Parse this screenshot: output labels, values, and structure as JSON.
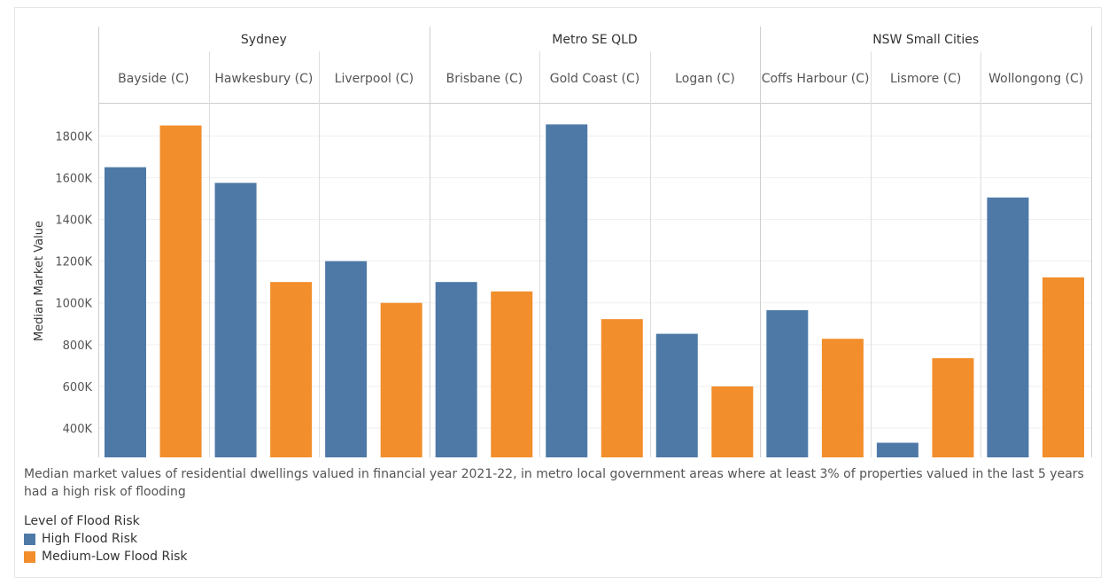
{
  "chart_data": {
    "type": "bar",
    "ylabel": "Median Market Value",
    "y_ticks": [
      "400K",
      "600K",
      "800K",
      "1000K",
      "1200K",
      "1400K",
      "1600K",
      "1800K"
    ],
    "y_tick_values": [
      400000,
      600000,
      800000,
      1000000,
      1200000,
      1400000,
      1600000,
      1800000
    ],
    "ylim": [
      260000,
      1950000
    ],
    "grid": true,
    "regions": [
      {
        "name": "Sydney",
        "categories": [
          "Bayside (C)",
          "Hawkesbury (C)",
          "Liverpool (C)"
        ]
      },
      {
        "name": "Metro SE QLD",
        "categories": [
          "Brisbane (C)",
          "Gold Coast (C)",
          "Logan (C)"
        ]
      },
      {
        "name": "NSW Small Cities",
        "categories": [
          "Coffs Harbour (C)",
          "Lismore (C)",
          "Wollongong (C)"
        ]
      }
    ],
    "categories": [
      "Bayside (C)",
      "Hawkesbury (C)",
      "Liverpool (C)",
      "Brisbane (C)",
      "Gold Coast (C)",
      "Logan (C)",
      "Coffs Harbour (C)",
      "Lismore (C)",
      "Wollongong (C)"
    ],
    "series": [
      {
        "name": "High Flood Risk",
        "color": "#4e79a7",
        "values": [
          1650000,
          1575000,
          1200000,
          1100000,
          1855000,
          852000,
          965000,
          330000,
          1505000
        ]
      },
      {
        "name": "Medium-Low Flood Risk",
        "color": "#f28e2b",
        "values": [
          1850000,
          1100000,
          1000000,
          1055000,
          922000,
          600000,
          828000,
          735000,
          1122000
        ]
      }
    ],
    "legend_position": "bottom-left"
  },
  "caption": "Median market values of residential dwellings valued in financial year 2021-22, in metro local government areas where at least 3% of properties valued in the last 5 years had a high risk of flooding",
  "legend": {
    "title": "Level of Flood Risk",
    "items": [
      {
        "label": "High Flood Risk",
        "color": "#4e79a7"
      },
      {
        "label": "Medium-Low Flood Risk",
        "color": "#f28e2b"
      }
    ]
  }
}
